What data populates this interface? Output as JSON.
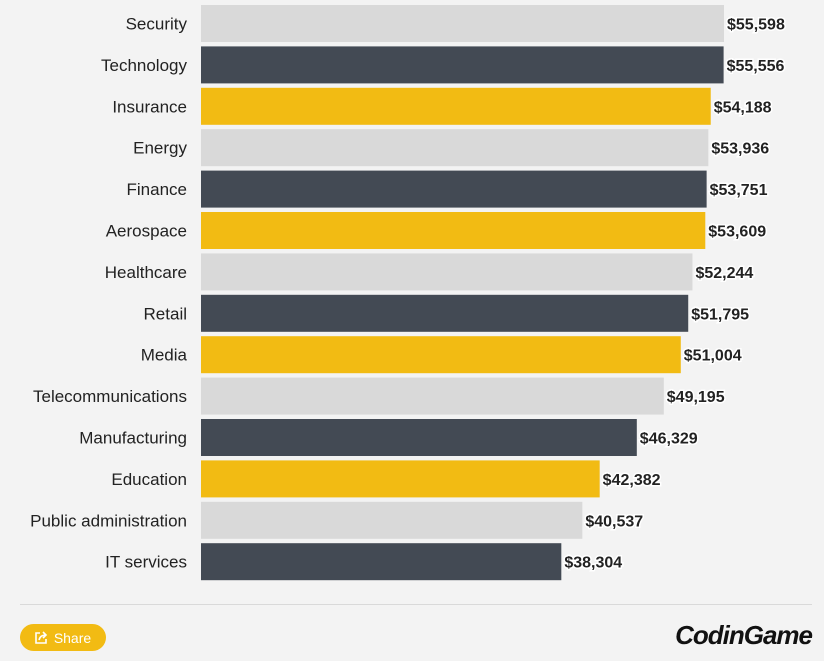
{
  "chart_data": {
    "type": "bar",
    "orientation": "horizontal",
    "categories": [
      "Security",
      "Technology",
      "Insurance",
      "Energy",
      "Finance",
      "Aerospace",
      "Healthcare",
      "Retail",
      "Media",
      "Telecommunications",
      "Manufacturing",
      "Education",
      "Public administration",
      "IT services"
    ],
    "values": [
      55598,
      55556,
      54188,
      53936,
      53751,
      53609,
      52244,
      51795,
      51004,
      49195,
      46329,
      42382,
      40537,
      38304
    ],
    "data_labels": [
      "$55,598",
      "$55,556",
      "$54,188",
      "$53,936",
      "$53,751",
      "$53,609",
      "$52,244",
      "$51,795",
      "$51,004",
      "$49,195",
      "$46,329",
      "$42,382",
      "$40,537",
      "$38,304"
    ],
    "colors": [
      "#d9d9d9",
      "#434a54",
      "#f2bb13"
    ],
    "xlim": [
      0,
      55598
    ],
    "grid": false,
    "title": "",
    "xlabel": "",
    "ylabel": ""
  },
  "footer": {
    "share_label": "Share",
    "share_icon": "share-icon",
    "logo": "CodinGame"
  }
}
